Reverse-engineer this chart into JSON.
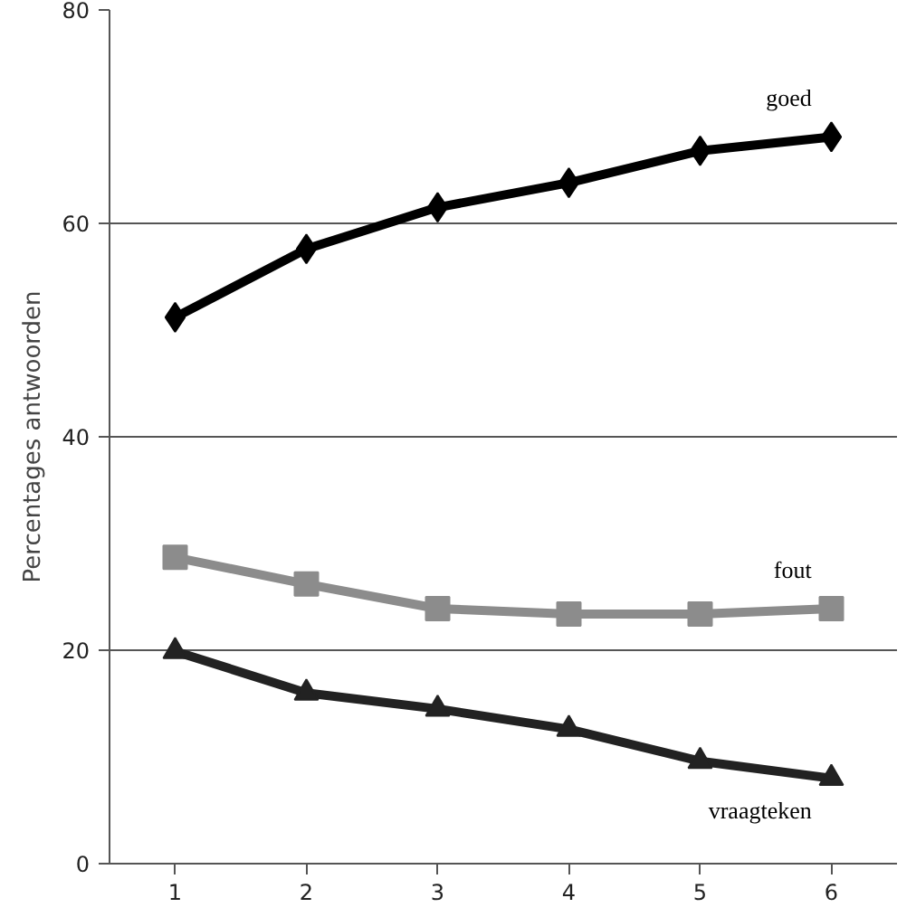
{
  "chart_data": {
    "type": "line",
    "ylabel": "Percentages antwoorden",
    "categories": [
      "1",
      "2",
      "3",
      "4",
      "5",
      "6"
    ],
    "ylim": [
      0,
      80
    ],
    "yticks": [
      0,
      20,
      40,
      60,
      80
    ],
    "grid": "y",
    "legend": false,
    "series": [
      {
        "name": "goed",
        "color": "#000000",
        "marker": "diamond",
        "values": [
          51.2,
          57.6,
          61.5,
          63.8,
          66.8,
          68.1
        ]
      },
      {
        "name": "fout",
        "color": "#8c8c8c",
        "marker": "square",
        "values": [
          28.7,
          26.2,
          23.9,
          23.4,
          23.4,
          23.9
        ]
      },
      {
        "name": "vraagteken",
        "color": "#222222",
        "marker": "triangle",
        "values": [
          19.9,
          16.0,
          14.5,
          12.6,
          9.6,
          8.0
        ]
      }
    ]
  }
}
